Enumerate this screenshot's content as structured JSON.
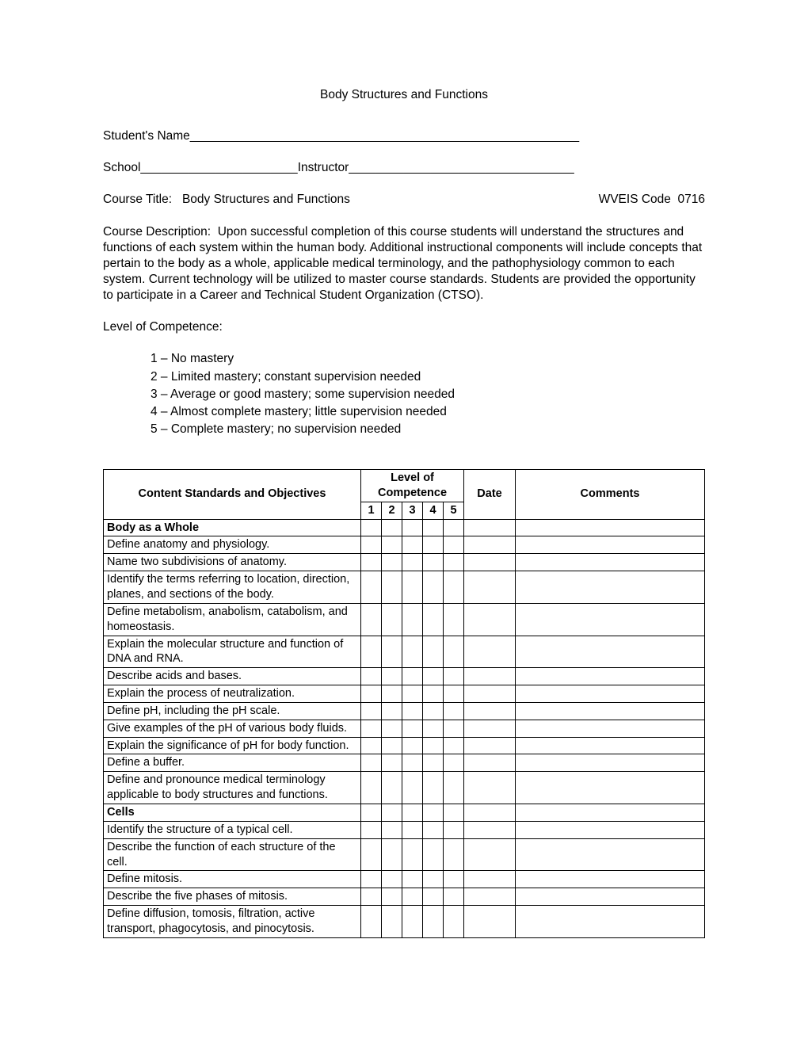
{
  "title": "Body Structures and Functions",
  "fields": {
    "student_name_label": "Student's Name",
    "student_name_line": "_________________________________________________________",
    "school_label": "School",
    "school_line": "_______________________",
    "instructor_label": "Instructor",
    "instructor_line": "_________________________________"
  },
  "course": {
    "title_label": "Course Title:",
    "title_value": "Body Structures and Functions",
    "code_label": "WVEIS Code",
    "code_value": "0716"
  },
  "description": {
    "label": "Course Description:",
    "text": "Upon successful completion of this course students will understand the structures and functions of each system within the human body.  Additional instructional components will include concepts that pertain to the body as a whole, applicable medical terminology, and the pathophysiology common to each system.  Current technology will be utilized to master course standards.  Students are provided the opportunity to participate in a Career and Technical Student Organization (CTSO)."
  },
  "competence": {
    "heading": "Level of Competence:",
    "levels": [
      "1 – No mastery",
      "2 – Limited mastery; constant supervision needed",
      "3 – Average or good mastery; some supervision needed",
      "4 – Almost complete mastery; little supervision needed",
      "5 – Complete mastery; no supervision needed"
    ]
  },
  "table": {
    "headers": {
      "objectives": "Content Standards and Objectives",
      "level": "Level of Competence",
      "date": "Date",
      "comments": "Comments",
      "l1": "1",
      "l2": "2",
      "l3": "3",
      "l4": "4",
      "l5": "5"
    },
    "rows": [
      {
        "type": "section",
        "text": "Body as a Whole"
      },
      {
        "type": "item",
        "text": "Define anatomy and physiology."
      },
      {
        "type": "item",
        "text": "Name two subdivisions of anatomy."
      },
      {
        "type": "item",
        "text": "Identify the terms referring to location, direction, planes, and sections of the body."
      },
      {
        "type": "item",
        "text": "Define metabolism, anabolism, catabolism, and homeostasis."
      },
      {
        "type": "item",
        "text": "Explain the molecular structure and function of DNA and RNA."
      },
      {
        "type": "item",
        "text": "Describe acids and bases."
      },
      {
        "type": "item",
        "text": "Explain the process of neutralization."
      },
      {
        "type": "item",
        "text": "Define pH, including the pH scale."
      },
      {
        "type": "item",
        "text": "Give examples of the pH of various body fluids."
      },
      {
        "type": "item",
        "text": "Explain the significance of pH for body function."
      },
      {
        "type": "item",
        "text": "Define a buffer."
      },
      {
        "type": "item",
        "text": "Define and pronounce medical terminology applicable to body structures and functions."
      },
      {
        "type": "section",
        "text": "Cells"
      },
      {
        "type": "item",
        "text": "Identify the structure of a typical cell."
      },
      {
        "type": "item",
        "text": "Describe the function of each structure of the cell."
      },
      {
        "type": "item",
        "text": "Define mitosis."
      },
      {
        "type": "item",
        "text": "Describe the five phases of mitosis."
      },
      {
        "type": "item",
        "text": "Define diffusion, tomosis, filtration, active transport, phagocytosis, and pinocytosis."
      }
    ]
  }
}
